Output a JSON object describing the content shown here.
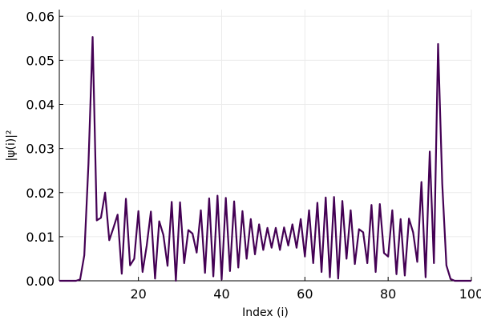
{
  "chart_data": {
    "type": "line",
    "title": "",
    "xlabel": "Index (i)",
    "ylabel": "|ψ(i)|²",
    "xlim": [
      1,
      100
    ],
    "ylim": [
      0,
      0.0615
    ],
    "xticks": [
      20,
      40,
      60,
      80,
      100
    ],
    "xtick_labels": [
      "20",
      "40",
      "60",
      "80",
      "100"
    ],
    "yticks": [
      0,
      0.01,
      0.02,
      0.03,
      0.04,
      0.05,
      0.06
    ],
    "ytick_labels": [
      "0.00",
      "0.01",
      "0.02",
      "0.03",
      "0.04",
      "0.05",
      "0.06"
    ],
    "grid": true,
    "legend": "none",
    "line_color": "#440154",
    "grid_color": "#ebebeb",
    "series": [
      {
        "x": [
          1,
          2,
          3,
          4,
          5,
          6,
          7,
          8,
          9,
          10,
          11,
          12,
          13,
          14,
          15,
          16,
          17,
          18,
          19,
          20,
          21,
          22,
          23,
          24,
          25,
          26,
          27,
          28,
          29,
          30,
          31,
          32,
          33,
          34,
          35,
          36,
          37,
          38,
          39,
          40,
          41,
          42,
          43,
          44,
          45,
          46,
          47,
          48,
          49,
          50,
          51,
          52,
          53,
          54,
          55,
          56,
          57,
          58,
          59,
          60,
          61,
          62,
          63,
          64,
          65,
          66,
          67,
          68,
          69,
          70,
          71,
          72,
          73,
          74,
          75,
          76,
          77,
          78,
          79,
          80,
          81,
          82,
          83,
          84,
          85,
          86,
          87,
          88,
          89,
          90,
          91,
          92,
          93,
          94,
          95,
          96,
          97,
          98,
          99,
          100
        ],
        "y": [
          0,
          0,
          0,
          0,
          0,
          0.0003,
          0.0058,
          0.0265,
          0.0553,
          0.0137,
          0.0143,
          0.02,
          0.0092,
          0.012,
          0.015,
          0.0016,
          0.0186,
          0.0035,
          0.005,
          0.0158,
          0.002,
          0.008,
          0.0157,
          0.0005,
          0.0135,
          0.0104,
          0.0034,
          0.0179,
          0.0,
          0.0178,
          0.004,
          0.0115,
          0.0107,
          0.0064,
          0.016,
          0.0018,
          0.0187,
          0.001,
          0.0193,
          0.0003,
          0.0188,
          0.0022,
          0.018,
          0.003,
          0.0158,
          0.005,
          0.014,
          0.006,
          0.0128,
          0.007,
          0.012,
          0.0075,
          0.012,
          0.007,
          0.0121,
          0.008,
          0.0128,
          0.0075,
          0.014,
          0.0055,
          0.016,
          0.004,
          0.0177,
          0.002,
          0.0189,
          0.0008,
          0.019,
          0.0005,
          0.0181,
          0.005,
          0.016,
          0.0038,
          0.0117,
          0.011,
          0.004,
          0.0172,
          0.002,
          0.0174,
          0.0063,
          0.0055,
          0.016,
          0.0015,
          0.014,
          0.0012,
          0.0141,
          0.011,
          0.0043,
          0.0224,
          0.0008,
          0.0293,
          0.004,
          0.0537,
          0.022,
          0.0035,
          0.0004,
          0,
          0,
          0,
          0,
          0
        ]
      }
    ]
  }
}
